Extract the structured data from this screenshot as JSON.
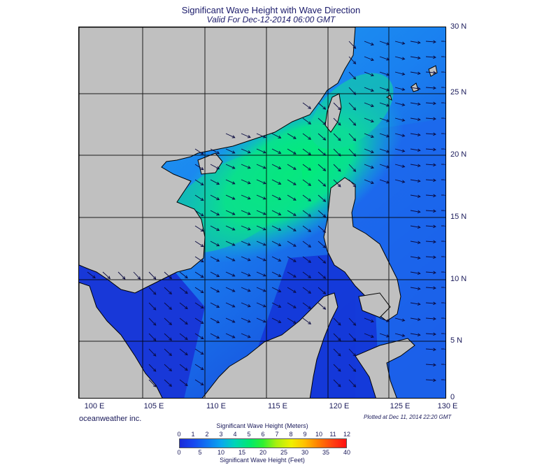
{
  "title": "Significant Wave Height with Wave Direction",
  "subtitle": "Valid For Dec-12-2014 06:00 GMT",
  "lat_labels": [
    "30 N",
    "25 N",
    "20 N",
    "15 N",
    "10 N",
    "5 N",
    "0"
  ],
  "lon_labels": [
    "100 E",
    "105 E",
    "110 E",
    "115 E",
    "120 E",
    "125 E",
    "130 E"
  ],
  "brand": "oceanweather inc.",
  "plotted": "Plotted at Dec 11, 2014 22:20 GMT",
  "colorbar": {
    "meters_title": "Significant Wave Height (Meters)",
    "feet_title": "Significant Wave Height (Feet)",
    "meters_ticks": [
      "0",
      "1",
      "2",
      "3",
      "4",
      "5",
      "6",
      "7",
      "8",
      "9",
      "10",
      "11",
      "12"
    ],
    "feet_ticks": [
      "0",
      "5",
      "10",
      "15",
      "20",
      "25",
      "30",
      "35",
      "40"
    ]
  },
  "colors": {
    "land": "#c0c0c0",
    "deep": "#1a3ae0",
    "mid": "#1f74f0",
    "high": "#00e86a",
    "arrow": "#0a0a40"
  }
}
